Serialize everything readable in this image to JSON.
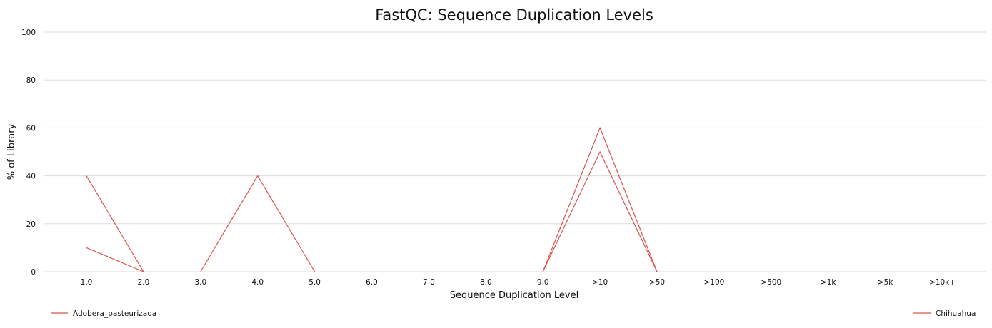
{
  "chart_data": {
    "type": "line",
    "title": "FastQC: Sequence Duplication Levels",
    "xlabel": "Sequence Duplication Level",
    "ylabel": "% of Library",
    "categories": [
      "1.0",
      "2.0",
      "3.0",
      "4.0",
      "5.0",
      "6.0",
      "7.0",
      "8.0",
      "9.0",
      ">10",
      ">50",
      ">100",
      ">500",
      ">1k",
      ">5k",
      ">10k+"
    ],
    "ylim": [
      0,
      100
    ],
    "yticks": [
      0,
      20,
      40,
      60,
      80,
      100
    ],
    "grid": true,
    "legend_placement": "bottom",
    "series": [
      {
        "name": "Adobera_pasteurizada",
        "color": "#d9534f",
        "values": [
          10,
          0,
          null,
          null,
          null,
          null,
          null,
          null,
          0,
          60,
          0,
          null,
          null,
          null,
          null,
          null
        ]
      },
      {
        "name": "Chihuahua",
        "color": "#d9534f",
        "values": [
          40,
          0,
          null,
          null,
          null,
          null,
          null,
          null,
          0,
          50,
          0,
          null,
          null,
          null,
          null,
          null
        ]
      },
      {
        "name": "",
        "color": "#d9534f",
        "values": [
          null,
          null,
          0,
          40,
          0,
          null,
          null,
          null,
          null,
          null,
          null,
          null,
          null,
          null,
          null,
          null
        ]
      }
    ]
  }
}
